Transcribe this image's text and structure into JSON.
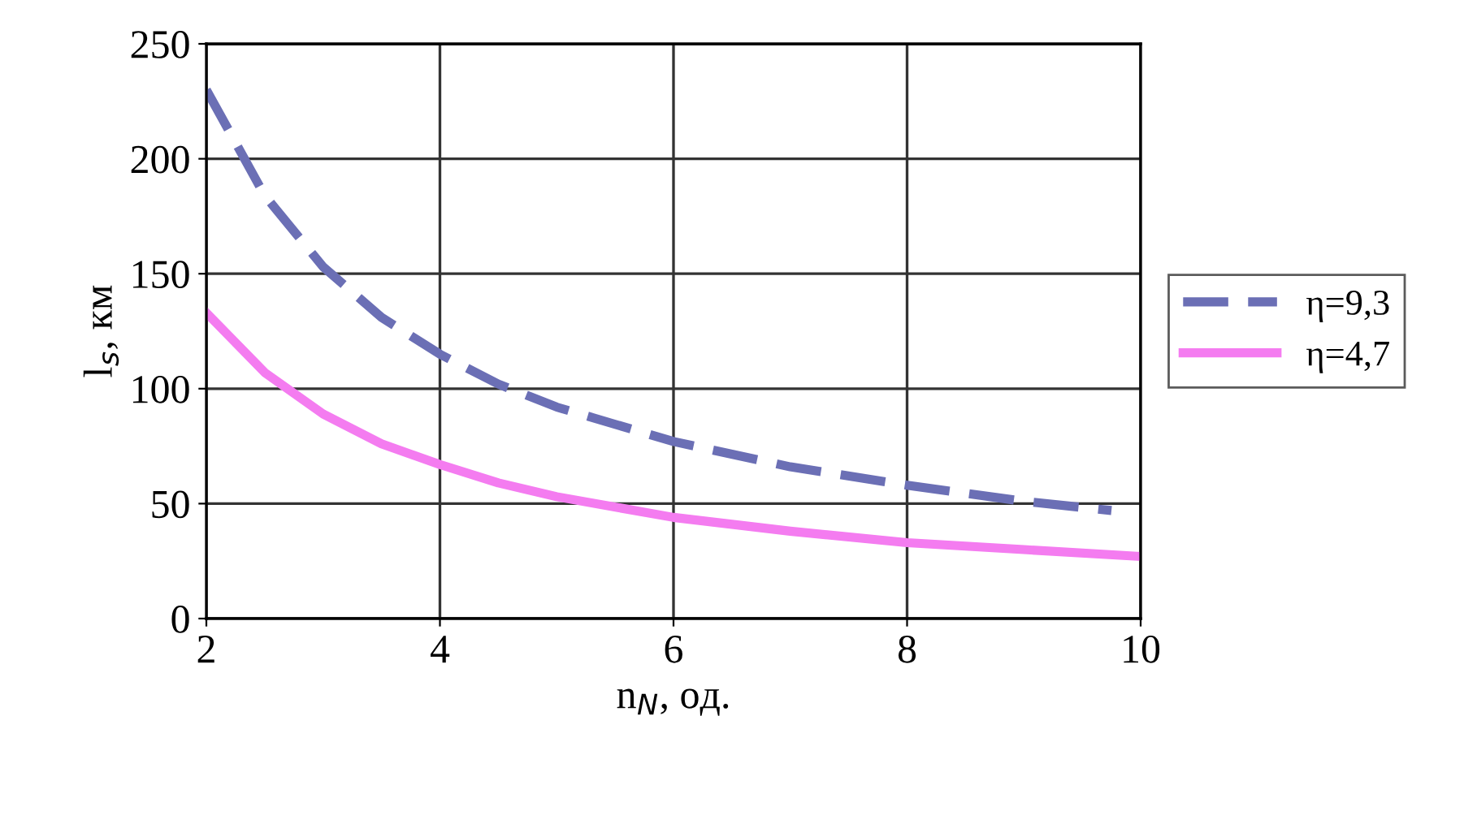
{
  "chart_data": {
    "type": "line",
    "xlabel": "n$_{N}$, од.",
    "ylabel": "l$_{s}$, км",
    "xlim": [
      2,
      10
    ],
    "xticks": [
      2,
      4,
      6,
      8,
      10
    ],
    "ylim": [
      0,
      250
    ],
    "yticks": [
      0,
      50,
      100,
      150,
      200,
      250
    ],
    "grid": true,
    "legend": "right",
    "marker": "none",
    "series": [
      {
        "name": "η=9,3",
        "color": "#6b6fb5",
        "line_style": "dashed",
        "x": [
          2,
          2.5,
          3,
          3.5,
          4,
          4.5,
          5,
          6,
          7,
          8,
          9,
          9.75
        ],
        "values": [
          230,
          184,
          153,
          131,
          115,
          102,
          92,
          77,
          66,
          58,
          51,
          47
        ]
      },
      {
        "name": "η=4,7",
        "color": "#f47cf0",
        "line_style": "solid",
        "x": [
          2,
          2.5,
          3,
          3.5,
          4,
          4.5,
          5,
          6,
          7,
          8,
          9,
          10
        ],
        "values": [
          133,
          107,
          89,
          76,
          67,
          59,
          53,
          44,
          38,
          33,
          30,
          27
        ]
      }
    ]
  }
}
